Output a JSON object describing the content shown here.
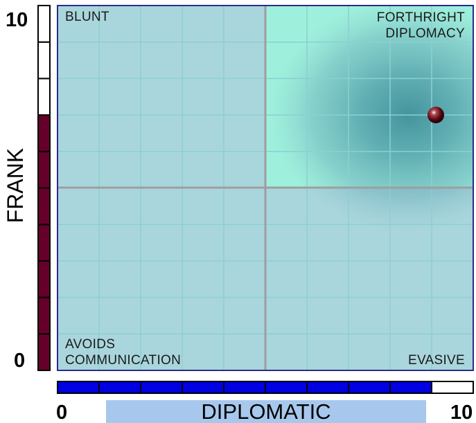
{
  "chart_data": {
    "type": "scatter",
    "xlabel": "DIPLOMATIC",
    "ylabel": "FRANK",
    "xlim": [
      0,
      10
    ],
    "ylim": [
      0,
      10
    ],
    "x_ticks": [
      "0",
      "10"
    ],
    "y_ticks": [
      "0",
      "10"
    ],
    "grid": true,
    "point": {
      "x": 9.1,
      "y": 7.0
    },
    "quadrants": {
      "top_left": [
        "BLUNT"
      ],
      "top_right": [
        "FORTHRIGHT",
        "DIPLOMACY"
      ],
      "bottom_left": [
        "AVOIDS",
        "COMMUNICATION"
      ],
      "bottom_right": [
        "EVASIVE"
      ]
    },
    "frank_level": 7,
    "diplomatic_level": 9,
    "highlight_quadrant": "top-right"
  },
  "colors": {
    "plot_bg": "#a9d6dc",
    "highlight": "#9ef0dc",
    "grid": "#8ccfd2",
    "midline": "#9e9e9e",
    "border": "#2b2b8c",
    "frank_bar": "#66002a",
    "diplomatic_bar": "#0000e0",
    "x_label_band": "#a7c8ec",
    "marker": "#5a0a12"
  }
}
